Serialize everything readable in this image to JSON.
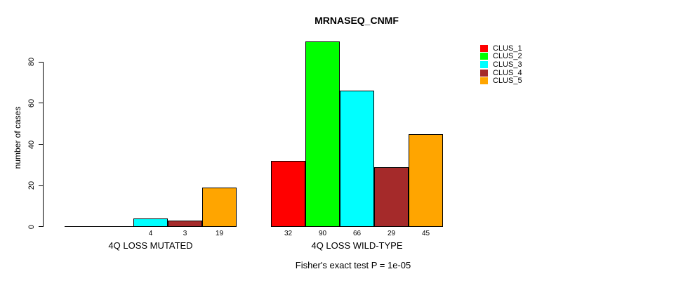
{
  "title": "MRNASEQ_CNMF",
  "chart_data": {
    "type": "bar",
    "title": "MRNASEQ_CNMF",
    "ylabel": "number of cases",
    "xlabel": "",
    "ylim": [
      0,
      92
    ],
    "yticks": [
      0,
      20,
      40,
      60,
      80
    ],
    "grid": false,
    "legend_position": "right",
    "categories": [
      "4Q LOSS MUTATED",
      "4Q LOSS WILD-TYPE"
    ],
    "series": [
      {
        "name": "CLUS_1",
        "color": "#ff0000",
        "values": [
          0,
          32
        ]
      },
      {
        "name": "CLUS_2",
        "color": "#00ff00",
        "values": [
          0,
          90
        ]
      },
      {
        "name": "CLUS_3",
        "color": "#00ffff",
        "values": [
          4,
          66
        ]
      },
      {
        "name": "CLUS_4",
        "color": "#a52a2a",
        "values": [
          3,
          29
        ]
      },
      {
        "name": "CLUS_5",
        "color": "#ffa500",
        "values": [
          19,
          45
        ]
      }
    ],
    "bar_value_labels": [
      [
        "",
        "",
        "4",
        "3",
        "19"
      ],
      [
        "32",
        "90",
        "66",
        "29",
        "45"
      ]
    ],
    "annotation": "Fisher's exact test P = 1e-05"
  }
}
